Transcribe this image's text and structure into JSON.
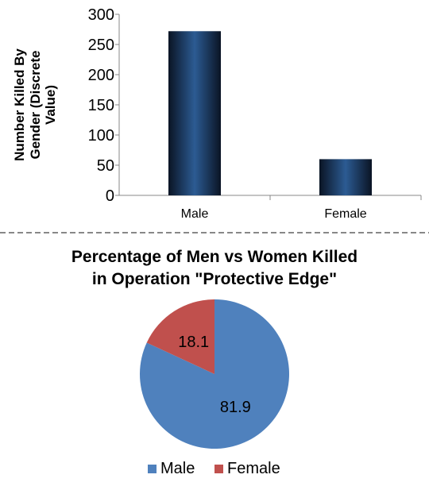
{
  "chart_data": [
    {
      "type": "bar",
      "title": "",
      "xlabel": "",
      "ylabel_lines": [
        "Number Killed By",
        "Gender (Discrete",
        "Value)"
      ],
      "categories": [
        "Male",
        "Female"
      ],
      "values": [
        272,
        60
      ],
      "ylim": [
        0,
        300
      ],
      "yticks": [
        "0",
        "50",
        "100",
        "150",
        "200",
        "250",
        "300"
      ],
      "grid": false,
      "bar_color": "#17375e"
    },
    {
      "type": "pie",
      "title_lines": [
        "Percentage of Men vs Women Killed",
        "in Operation \"Protective Edge\""
      ],
      "categories": [
        "Male",
        "Female"
      ],
      "values": [
        81.9,
        18.1
      ],
      "data_labels": [
        "81.9",
        "18.1"
      ],
      "colors": [
        "#4f81bd",
        "#c0504d"
      ],
      "legend_position": "bottom"
    }
  ]
}
